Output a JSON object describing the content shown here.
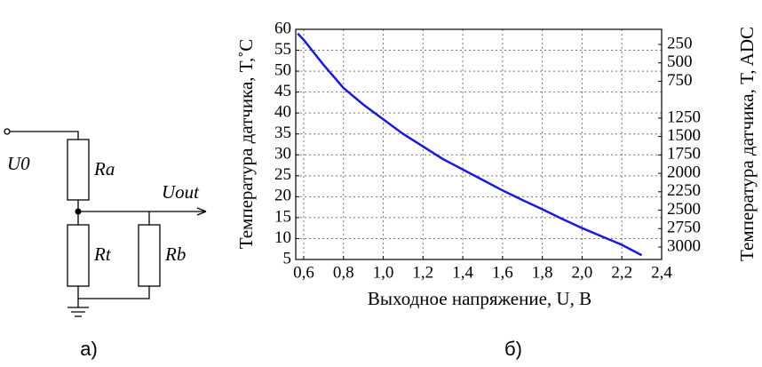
{
  "diagram": {
    "labels": {
      "u0": "U0",
      "ra": "Ra",
      "rt": "Rt",
      "rb": "Rb",
      "uout": "Uout"
    },
    "caption": "а)"
  },
  "chart_data": {
    "type": "line",
    "caption": "б)",
    "x_label": "Выходное напряжение, U, В",
    "y_label": "Температура датчика, T,˚C",
    "y2_label": "Температура датчика, T, ADC",
    "x": [
      0.57,
      0.6,
      0.7,
      0.8,
      0.9,
      1.0,
      1.1,
      1.2,
      1.3,
      1.4,
      1.5,
      1.6,
      1.7,
      1.8,
      1.9,
      2.0,
      2.1,
      2.2,
      2.3
    ],
    "series": [
      {
        "name": "T",
        "color": "#1a1adc",
        "values": [
          59,
          57.5,
          51.5,
          46,
          42,
          38.5,
          35,
          32,
          29,
          26.5,
          24,
          21.5,
          19.2,
          17,
          14.7,
          12.5,
          10.5,
          8.5,
          6
        ]
      }
    ],
    "xlim": [
      0.56,
      2.4
    ],
    "xticks": [
      {
        "value": 0.6,
        "label": "0,6"
      },
      {
        "value": 0.8,
        "label": "0,8"
      },
      {
        "value": 1.0,
        "label": "1,0"
      },
      {
        "value": 1.2,
        "label": "1,2"
      },
      {
        "value": 1.4,
        "label": "1,4"
      },
      {
        "value": 1.6,
        "label": "1,6"
      },
      {
        "value": 1.8,
        "label": "1,8"
      },
      {
        "value": 2.0,
        "label": "2,0"
      },
      {
        "value": 2.2,
        "label": "2,2"
      },
      {
        "value": 2.4,
        "label": "2,4"
      }
    ],
    "ylim": [
      5,
      60
    ],
    "yticks": [
      5,
      10,
      15,
      20,
      25,
      30,
      35,
      40,
      45,
      50,
      55,
      60
    ],
    "y2lim": [
      45,
      3169
    ],
    "y2ticks": [
      250,
      500,
      750,
      1250,
      1500,
      1750,
      2000,
      2250,
      2500,
      2750,
      3000
    ],
    "grid": true
  }
}
